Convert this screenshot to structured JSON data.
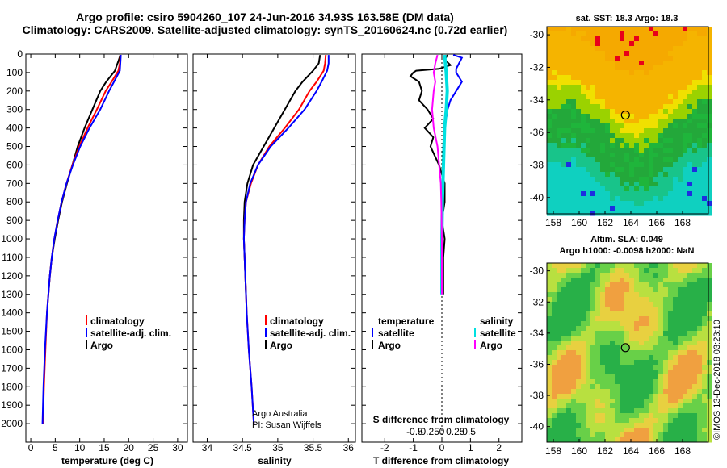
{
  "title_line1": "Argo profile: csiro 5904260_107 24-Jun-2016 34.93S 163.58E (DM data)",
  "title_line2": "Climatology: CARS2009. Satellite-adjusted climatology: synTS_20160624.nc (0.72d earlier)",
  "sst_title": "sat. SST: 18.3 Argo: 18.3",
  "sla_title1": "Altim. SLA: 0.049",
  "sla_title2": "Argo h1000: -0.0098 h2000: NaN",
  "credit_line1": "Argo Australia",
  "credit_line2": "PI: Susan Wijffels",
  "watermark": "©IMOS 13-Dec-2018 03:23:10",
  "colors": {
    "climatology": "#ff0000",
    "satellite": "#0000ff",
    "argo": "#000000",
    "sal_diff": "#00e0e0",
    "sal_argo_diff": "#ff00ff"
  },
  "chart_data": [
    {
      "type": "line",
      "name": "temperature-profile",
      "xlabel": "temperature (deg C)",
      "ylabel": "",
      "xlim": [
        -1,
        32
      ],
      "ylim": [
        2100,
        0
      ],
      "xticks": [
        "0",
        "5",
        "10",
        "15",
        "20",
        "25",
        "30"
      ],
      "xtick_values": [
        0,
        5,
        10,
        15,
        20,
        25,
        30
      ],
      "yticks": [
        "0",
        "100",
        "200",
        "300",
        "400",
        "500",
        "600",
        "700",
        "800",
        "900",
        "1000",
        "1100",
        "1200",
        "1300",
        "1400",
        "1500",
        "1600",
        "1700",
        "1800",
        "1900",
        "2000"
      ],
      "ytick_values": [
        0,
        100,
        200,
        300,
        400,
        500,
        600,
        700,
        800,
        900,
        1000,
        1100,
        1200,
        1300,
        1400,
        1500,
        1600,
        1700,
        1800,
        1900,
        2000
      ],
      "legend": [
        "climatology",
        "satellite-adj. clim.",
        "Argo"
      ],
      "series": [
        {
          "name": "climatology",
          "depth": [
            5,
            50,
            90,
            150,
            200,
            300,
            400,
            500,
            600,
            700,
            800,
            900,
            1000,
            1100,
            1200,
            1400,
            1600,
            1800,
            2000
          ],
          "values": [
            18.3,
            18.2,
            17.9,
            16.5,
            15.3,
            13.5,
            11.6,
            9.9,
            8.5,
            7.3,
            6.3,
            5.5,
            4.8,
            4.3,
            3.9,
            3.3,
            3.0,
            2.7,
            2.5
          ]
        },
        {
          "name": "satellite-adj. clim.",
          "depth": [
            5,
            50,
            90,
            150,
            200,
            300,
            400,
            500,
            600,
            700,
            800,
            900,
            1000,
            1100,
            1200,
            1400,
            1600,
            1800,
            2000
          ],
          "values": [
            18.4,
            18.3,
            18.2,
            17.0,
            16.0,
            14.2,
            12.0,
            10.1,
            8.6,
            7.3,
            6.3,
            5.5,
            4.8,
            4.3,
            3.9,
            3.3,
            2.9,
            2.6,
            2.4
          ]
        },
        {
          "name": "Argo",
          "depth": [
            5,
            30,
            60,
            90,
            150,
            200,
            300,
            400,
            500,
            600,
            700,
            800,
            900,
            1000,
            1100,
            1200,
            1300
          ],
          "values": [
            18.3,
            18.0,
            17.6,
            17.2,
            15.4,
            14.2,
            12.6,
            11.0,
            9.6,
            8.5,
            7.4,
            6.4,
            5.6,
            4.9,
            4.3,
            3.9,
            3.6
          ]
        }
      ]
    },
    {
      "type": "line",
      "name": "salinity-profile",
      "xlabel": "salinity",
      "xlim": [
        33.8,
        36.1
      ],
      "ylim": [
        2100,
        0
      ],
      "xticks": [
        "34",
        "34.5",
        "35",
        "35.5",
        "36"
      ],
      "xtick_values": [
        34,
        34.5,
        35,
        35.5,
        36
      ],
      "legend": [
        "climatology",
        "satellite-adj. clim.",
        "Argo"
      ],
      "series": [
        {
          "name": "climatology",
          "depth": [
            5,
            50,
            90,
            150,
            200,
            300,
            400,
            500,
            600,
            700,
            800,
            900,
            1000,
            1100,
            1200,
            1400,
            1600,
            1800,
            2000
          ],
          "values": [
            35.68,
            35.67,
            35.65,
            35.55,
            35.45,
            35.3,
            35.1,
            34.88,
            34.72,
            34.62,
            34.55,
            34.53,
            34.52,
            34.53,
            34.54,
            34.56,
            34.59,
            34.63,
            34.66
          ]
        },
        {
          "name": "satellite-adj. clim.",
          "depth": [
            5,
            50,
            90,
            150,
            200,
            300,
            400,
            500,
            600,
            700,
            800,
            900,
            1000,
            1100,
            1200,
            1400,
            1600,
            1800,
            2000
          ],
          "values": [
            35.72,
            35.72,
            35.7,
            35.62,
            35.55,
            35.38,
            35.15,
            34.9,
            34.72,
            34.61,
            34.55,
            34.53,
            34.52,
            34.53,
            34.54,
            34.56,
            34.59,
            34.63,
            34.66
          ]
        },
        {
          "name": "Argo",
          "depth": [
            5,
            50,
            90,
            150,
            200,
            300,
            400,
            500,
            600,
            700,
            800,
            900,
            1000,
            1100,
            1200,
            1300
          ],
          "values": [
            35.6,
            35.58,
            35.5,
            35.35,
            35.25,
            35.1,
            34.95,
            34.8,
            34.65,
            34.57,
            34.53,
            34.52,
            34.52,
            34.53,
            34.54,
            34.55
          ]
        }
      ]
    },
    {
      "type": "line",
      "name": "difference-profile",
      "xlabel": "T difference from climatology",
      "x2label": "S difference from climatology",
      "xlim": [
        -2.8,
        2.8
      ],
      "ylim": [
        2100,
        0
      ],
      "xticks": [
        "-2",
        "-1",
        "0",
        "1",
        "2"
      ],
      "xtick_values": [
        -2,
        -1,
        0,
        1,
        2
      ],
      "x2ticks": [
        "-0.5",
        "-0.25",
        "0",
        "0.25",
        "0.5"
      ],
      "x2tick_values": [
        -0.5,
        -0.25,
        0,
        0.25,
        0.5
      ],
      "legend_left_title": "temperature",
      "legend_right_title": "salinity",
      "legend": [
        "satellite",
        "Argo"
      ],
      "series": [
        {
          "name": "T satellite",
          "depth": [
            5,
            20,
            50,
            80,
            100,
            150,
            200,
            250,
            300,
            400,
            500,
            600,
            800,
            1000,
            1200
          ],
          "values": [
            0.4,
            0.7,
            0.6,
            0.5,
            0.5,
            0.7,
            0.5,
            0.3,
            0.2,
            0.1,
            0.05,
            0.05,
            0.0,
            0.0,
            0.0
          ]
        },
        {
          "name": "T Argo",
          "depth": [
            5,
            30,
            60,
            80,
            90,
            100,
            120,
            150,
            200,
            250,
            300,
            350,
            400,
            450,
            500,
            600,
            700,
            800,
            900,
            1000,
            1100,
            1200,
            1300
          ],
          "values": [
            0.2,
            0.1,
            0.3,
            -0.1,
            -0.9,
            -1.0,
            -1.1,
            -0.8,
            -0.7,
            -0.8,
            -0.5,
            -0.3,
            -0.6,
            -0.3,
            -0.4,
            -0.1,
            0.1,
            0.1,
            0.0,
            0.1,
            0.05,
            0.05,
            0.05
          ]
        },
        {
          "name": "S satellite",
          "depth": [
            5,
            100,
            200,
            300,
            400,
            600,
            800,
            1000,
            1200,
            1300
          ],
          "values": [
            0.05,
            0.08,
            0.1,
            0.08,
            0.05,
            0.03,
            0.01,
            0.0,
            0.0,
            0.0
          ]
        },
        {
          "name": "S Argo",
          "depth": [
            5,
            50,
            100,
            150,
            200,
            300,
            400,
            500,
            600,
            700,
            800,
            1000,
            1200,
            1300
          ],
          "values": [
            -0.08,
            -0.12,
            -0.15,
            -0.12,
            -0.15,
            -0.18,
            -0.15,
            -0.08,
            -0.05,
            -0.02,
            -0.01,
            0.0,
            0.0,
            0.0
          ]
        }
      ]
    },
    {
      "type": "heatmap",
      "name": "sst-map",
      "title": "sat. SST: 18.3 Argo: 18.3",
      "xlim": [
        157.5,
        170
      ],
      "ylim": [
        -41,
        -29.5
      ],
      "xticks": [
        "158",
        "160",
        "162",
        "164",
        "166",
        "168"
      ],
      "xtick_values": [
        158,
        160,
        162,
        164,
        166,
        168
      ],
      "yticks": [
        "-30",
        "-32",
        "-34",
        "-36",
        "-38",
        "-40"
      ],
      "ytick_values": [
        -30,
        -32,
        -34,
        -36,
        -38,
        -40
      ],
      "marker": {
        "lon": 163.58,
        "lat": -34.93
      }
    },
    {
      "type": "heatmap",
      "name": "sla-map",
      "title": "Altim. SLA: 0.049",
      "subtitle": "Argo h1000: -0.0098 h2000: NaN",
      "xlim": [
        157.5,
        170
      ],
      "ylim": [
        -41,
        -29.5
      ],
      "xticks": [
        "158",
        "160",
        "162",
        "164",
        "166",
        "168"
      ],
      "xtick_values": [
        158,
        160,
        162,
        164,
        166,
        168
      ],
      "yticks": [
        "-30",
        "-32",
        "-34",
        "-36",
        "-38",
        "-40"
      ],
      "ytick_values": [
        -30,
        -32,
        -34,
        -36,
        -38,
        -40
      ],
      "marker": {
        "lon": 163.58,
        "lat": -34.93
      }
    }
  ]
}
